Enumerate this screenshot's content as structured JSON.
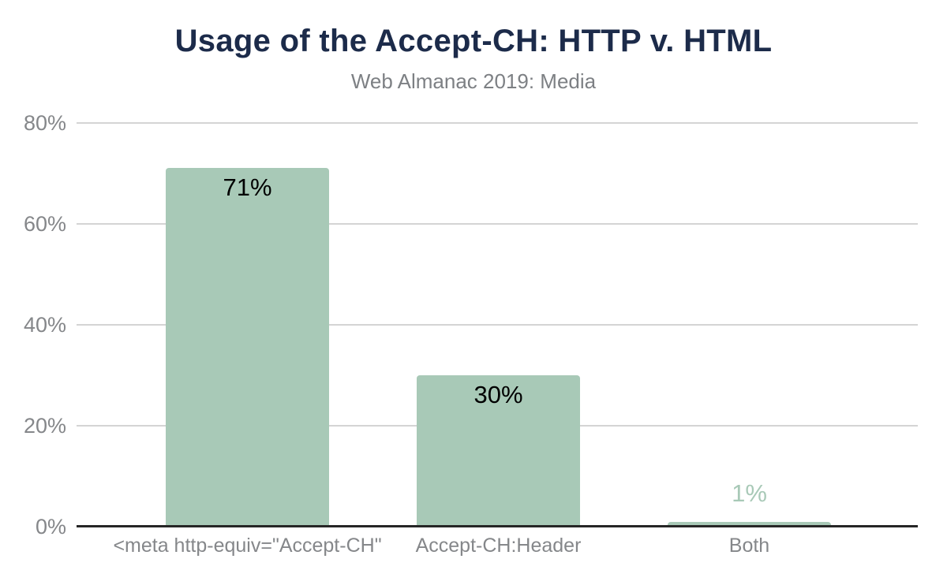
{
  "header": {
    "title": "Usage of the Accept-CH: HTTP v. HTML",
    "subtitle": "Web Almanac 2019: Media"
  },
  "chart_data": {
    "type": "bar",
    "title": "Usage of the Accept-CH: HTTP v. HTML",
    "subtitle": "Web Almanac 2019: Media",
    "categories": [
      "<meta http-equiv=\"Accept-CH\"",
      "Accept-CH:Header",
      "Both"
    ],
    "values": [
      71,
      30,
      1
    ],
    "data_labels": [
      "71%",
      "30%",
      "1%"
    ],
    "xlabel": "",
    "ylabel": "",
    "ylim": [
      0,
      80
    ],
    "yticks": [
      0,
      20,
      40,
      60,
      80
    ],
    "ytick_labels": [
      "0%",
      "20%",
      "40%",
      "60%",
      "80%"
    ],
    "grid": "horizontal",
    "legend": "none",
    "colors": {
      "bar": "#a8c9b7",
      "title": "#1c2b4a",
      "subtitle": "#7d8084",
      "axis_labels": "#85878a",
      "gridline": "#d4d4d4",
      "baseline": "#262626",
      "data_label_inside": "#000000",
      "data_label_outside": "#a8c9b7"
    }
  }
}
